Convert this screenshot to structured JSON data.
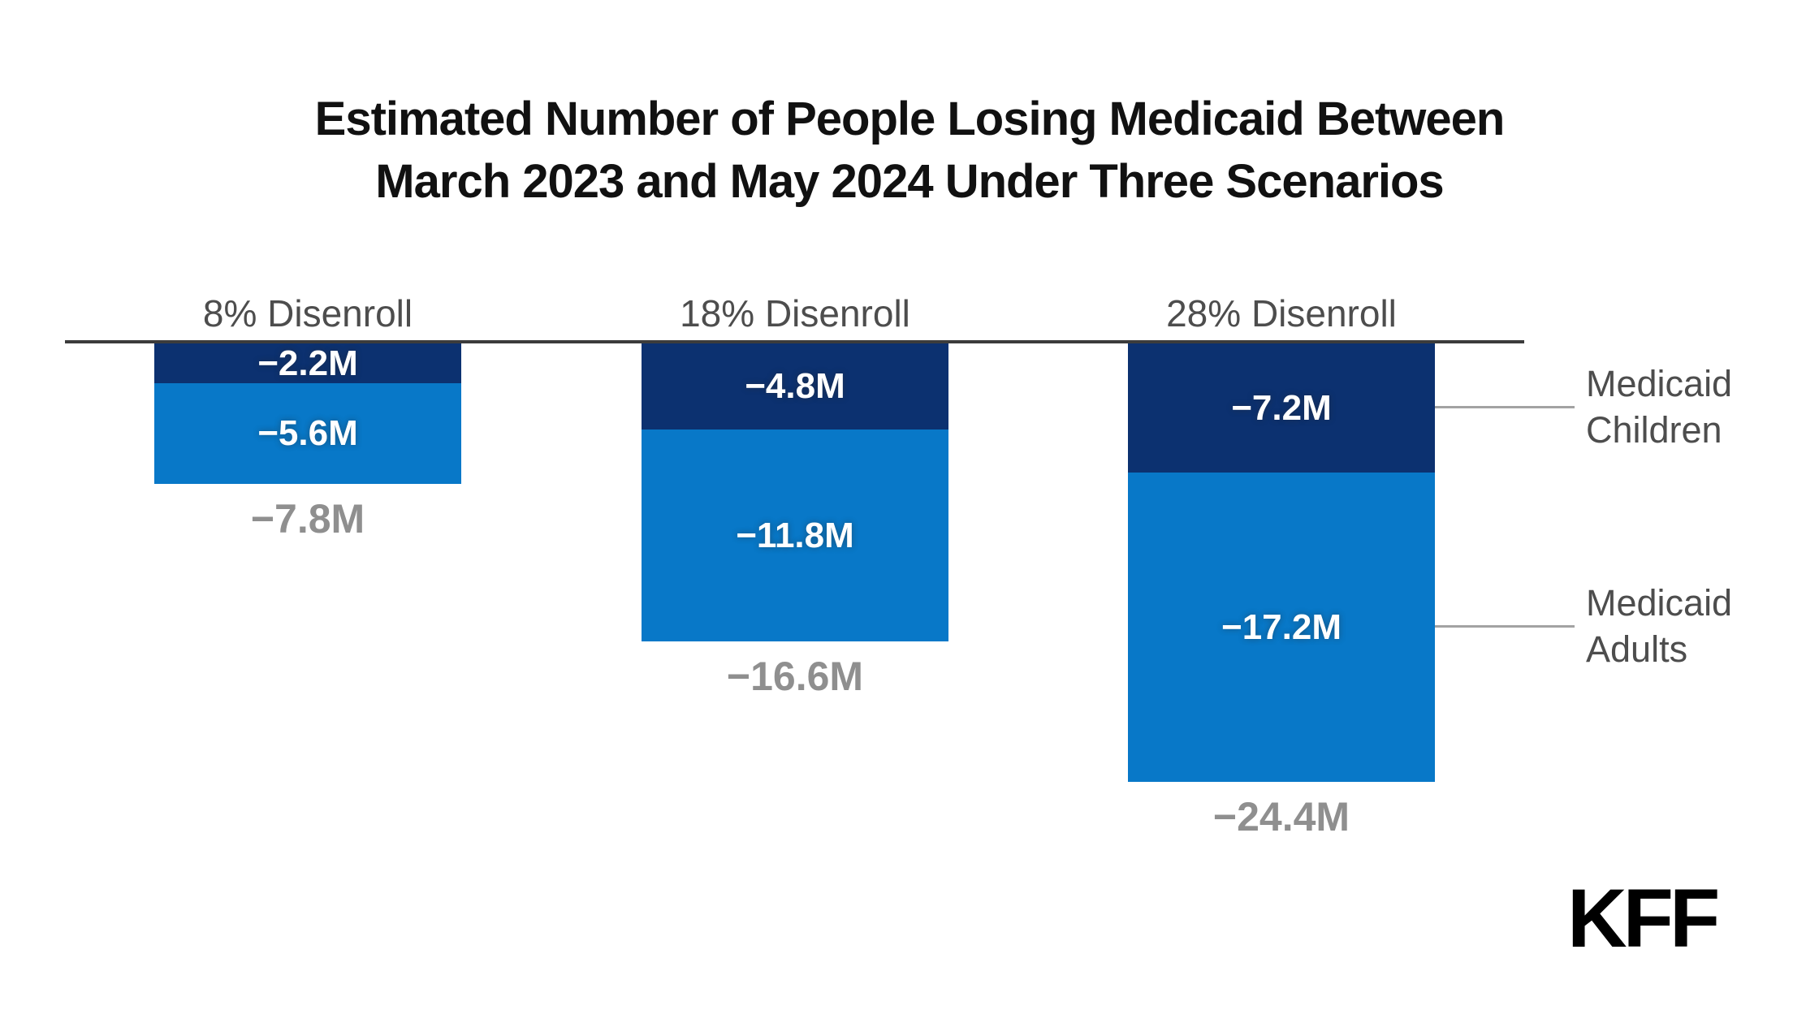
{
  "title": {
    "line1": "Estimated Number of People Losing Medicaid Between",
    "line2": "March 2023 and May 2024 Under Three Scenarios"
  },
  "logo_text": "KFF",
  "colors": {
    "children": "#0c3170",
    "adults": "#0878c8",
    "axis": "#3c3c3c",
    "scenario_label": "#4d4d4d",
    "total_label": "#8f8f8f",
    "leader_line": "#a3a3a3",
    "value_label": "#ffffff"
  },
  "side_labels": {
    "children": {
      "line1": "Medicaid",
      "line2": "Children"
    },
    "adults": {
      "line1": "Medicaid",
      "line2": "Adults"
    }
  },
  "chart_data": {
    "type": "bar",
    "subtype": "stacked-negative-column",
    "unit": "millions of people",
    "title": "Estimated Number of People Losing Medicaid Between March 2023 and May 2024 Under Three Scenarios",
    "categories": [
      "8% Disenroll",
      "18% Disenroll",
      "28% Disenroll"
    ],
    "series": [
      {
        "name": "Medicaid Children",
        "values": [
          -2.2,
          -4.8,
          -7.2
        ],
        "labels": [
          "−2.2M",
          "−4.8M",
          "−7.2M"
        ]
      },
      {
        "name": "Medicaid Adults",
        "values": [
          -5.6,
          -11.8,
          -17.2
        ],
        "labels": [
          "−5.6M",
          "−11.8M",
          "−17.2M"
        ]
      }
    ],
    "totals": [
      -7.8,
      -16.6,
      -24.4
    ],
    "total_labels": [
      "−7.8M",
      "−16.6M",
      "−24.4M"
    ],
    "baseline": 0,
    "axis_range": [
      -24.4,
      0
    ],
    "grid": false,
    "legend_position": "right",
    "xlabel": "",
    "ylabel": ""
  }
}
